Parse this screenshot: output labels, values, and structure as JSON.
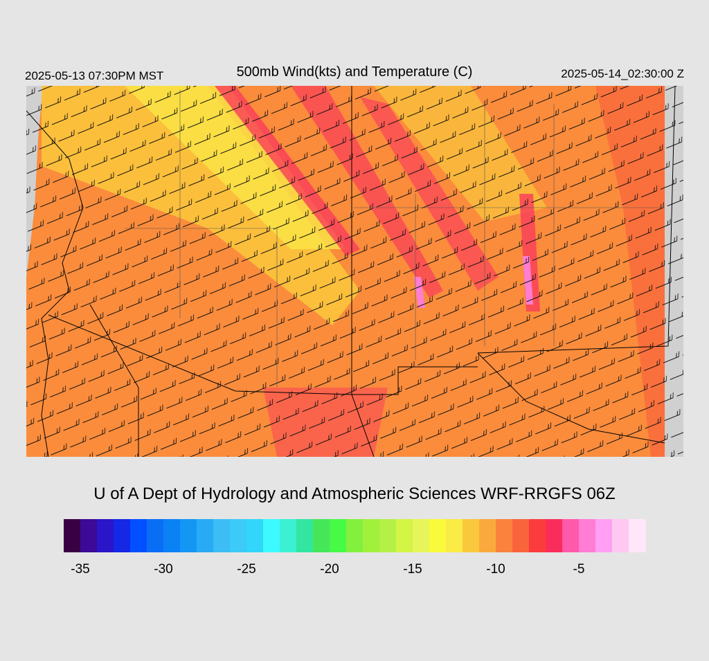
{
  "header": {
    "valid_local": "2025-05-13 07:30PM MST",
    "title": "500mb Wind(kts) and Temperature (C)",
    "valid_utc": "2025-05-14_02:30:00 Z"
  },
  "credit": "U of A Dept of Hydrology and Atmospheric Sciences WRF-RRGFS 06Z",
  "colorbar": {
    "range": [
      -36,
      -1
    ],
    "ticks": [
      -35,
      -30,
      -25,
      -20,
      -15,
      -10,
      -5
    ],
    "colors": [
      "#3a0044",
      "#3c0a96",
      "#2a16c8",
      "#1428e6",
      "#0050ff",
      "#0a6ef5",
      "#0a82f5",
      "#1496f5",
      "#28aaf5",
      "#3cbef5",
      "#3ccaf8",
      "#32d6fa",
      "#3cfaff",
      "#3cf0d2",
      "#32e6a0",
      "#46e65a",
      "#46fa46",
      "#82f03c",
      "#a0f03c",
      "#b4f046",
      "#d2f546",
      "#e6f55a",
      "#fafa3c",
      "#faeb46",
      "#fac83c",
      "#faaa3c",
      "#fa823c",
      "#fa643c",
      "#fa3c3c",
      "#fa2d5a",
      "#ff5aaa",
      "#ff7dd2",
      "#ffa0f5",
      "#ffc8f0",
      "#ffe6fa"
    ]
  }
}
